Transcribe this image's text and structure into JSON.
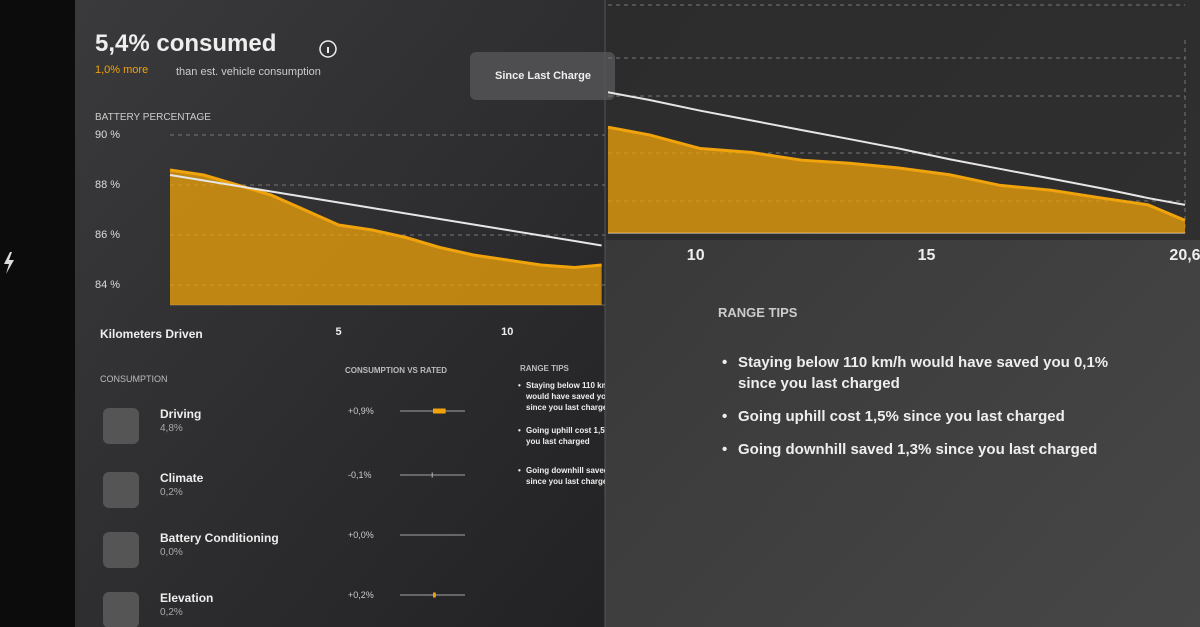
{
  "header": {
    "title": "5,4% consumed",
    "delta": "1,0% more",
    "subtitle": "than est. vehicle consumption",
    "button": "Since Last Charge"
  },
  "chart_data": [
    {
      "type": "area",
      "y_label": "BATTERY PERCENTAGE",
      "x_label": "Kilometers Driven",
      "x": [
        0,
        1,
        2,
        3,
        4,
        5,
        6,
        7,
        8,
        9,
        10,
        11,
        12,
        12.8
      ],
      "xlim": [
        0,
        12.9
      ],
      "xticks": [
        5,
        10
      ],
      "ylim": [
        83.2,
        90
      ],
      "yticks": [
        {
          "value": 90,
          "label": "90 %"
        },
        {
          "value": 88,
          "label": "88 %"
        },
        {
          "value": 86,
          "label": "86 %"
        },
        {
          "value": 84,
          "label": "84 %"
        }
      ],
      "grid": true,
      "series": [
        {
          "color": "#f0a30a",
          "fill": true,
          "values": [
            88.6,
            88.4,
            88.0,
            87.6,
            87.0,
            86.4,
            86.2,
            85.9,
            85.5,
            85.2,
            85.0,
            84.8,
            84.7,
            84.8
          ]
        },
        {
          "color": "#e6e6e6",
          "fill": false,
          "values": [
            88.4,
            88.18,
            87.96,
            87.74,
            87.52,
            87.3,
            87.08,
            86.86,
            86.64,
            86.42,
            86.2,
            85.98,
            85.76,
            85.58
          ]
        }
      ]
    },
    {
      "type": "area",
      "x": [
        8.1,
        9.0,
        10.1,
        11.2,
        12.3,
        13.3,
        14.4,
        15.5,
        16.6,
        17.7,
        18.8,
        19.8,
        20.6
      ],
      "xlim": [
        8.1,
        20.6
      ],
      "xticks": [
        10,
        15,
        {
          "value": 20.6,
          "label": "20,6"
        }
      ],
      "ylim": [
        83.8,
        86.2
      ],
      "series": [
        {
          "color": "#f0a30a",
          "fill": true,
          "values": [
            84.89,
            84.81,
            84.67,
            84.63,
            84.55,
            84.52,
            84.47,
            84.4,
            84.29,
            84.24,
            84.16,
            84.09,
            83.93
          ]
        },
        {
          "color": "#e6e6e6",
          "fill": false,
          "values": [
            85.25,
            85.17,
            85.06,
            84.96,
            84.86,
            84.77,
            84.67,
            84.56,
            84.46,
            84.36,
            84.26,
            84.16,
            84.09
          ]
        }
      ]
    }
  ],
  "consumption": {
    "title": "CONSUMPTION",
    "vs_title": "CONSUMPTION VS RATED",
    "items": [
      {
        "name": "Driving",
        "value": "4,8%",
        "vs": {
          "value": 0.9,
          "label": "+0,9%"
        }
      },
      {
        "name": "Climate",
        "value": "0,2%",
        "vs": {
          "value": -0.1,
          "label": "-0,1%"
        }
      },
      {
        "name": "Battery Conditioning",
        "value": "0,0%",
        "vs": {
          "value": 0.0,
          "label": "+0,0%"
        }
      },
      {
        "name": "Elevation",
        "value": "0,2%",
        "vs": {
          "value": 0.2,
          "label": "+0,2%"
        }
      }
    ]
  },
  "range_tips": {
    "title": "RANGE TIPS",
    "tips": [
      "Staying below 110 km/h would have saved you 0,1% since you last charged",
      "Going uphill cost 1,5% since you last charged",
      "Going downhill saved 1,3% since you last charged"
    ]
  }
}
